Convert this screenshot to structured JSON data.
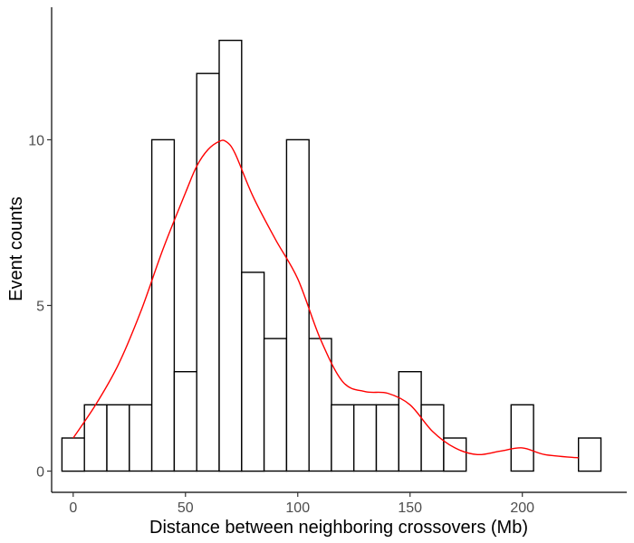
{
  "chart_data": {
    "type": "bar",
    "subtype": "histogram-with-density",
    "xlabel": "Distance between neighboring crossovers (Mb)",
    "ylabel": "Event counts",
    "bin_width": 10,
    "bin_centers": [
      0,
      10,
      20,
      30,
      40,
      50,
      60,
      70,
      80,
      90,
      100,
      110,
      120,
      130,
      140,
      150,
      160,
      170,
      180,
      190,
      200,
      210,
      220,
      230
    ],
    "values": [
      1,
      2,
      2,
      2,
      10,
      3,
      12,
      13,
      6,
      4,
      10,
      4,
      2,
      2,
      2,
      3,
      2,
      1,
      0,
      0,
      2,
      0,
      0,
      1
    ],
    "density_curve": {
      "color": "#ff0000",
      "x": [
        0,
        10,
        20,
        30,
        40,
        50,
        55,
        60,
        65,
        68,
        72,
        80,
        90,
        100,
        110,
        120,
        130,
        140,
        150,
        160,
        170,
        180,
        190,
        200,
        210,
        225
      ],
      "y": [
        1.0,
        2.0,
        3.2,
        4.8,
        6.7,
        8.4,
        9.2,
        9.7,
        9.95,
        9.95,
        9.6,
        8.3,
        7.0,
        5.8,
        4.0,
        2.7,
        2.4,
        2.35,
        2.0,
        1.2,
        0.7,
        0.5,
        0.6,
        0.7,
        0.5,
        0.4
      ]
    },
    "xlim": [
      -5,
      235
    ],
    "ylim": [
      0,
      13
    ],
    "x_ticks": [
      0,
      50,
      100,
      150,
      200
    ],
    "x_tick_labels": [
      "0",
      "50",
      "100",
      "150",
      "200"
    ],
    "y_ticks": [
      0,
      5,
      10
    ],
    "y_tick_labels": [
      "0",
      "5",
      "10"
    ],
    "grid": false,
    "legend": "none",
    "bar_fill": "#ffffff",
    "bar_stroke": "#000000"
  }
}
